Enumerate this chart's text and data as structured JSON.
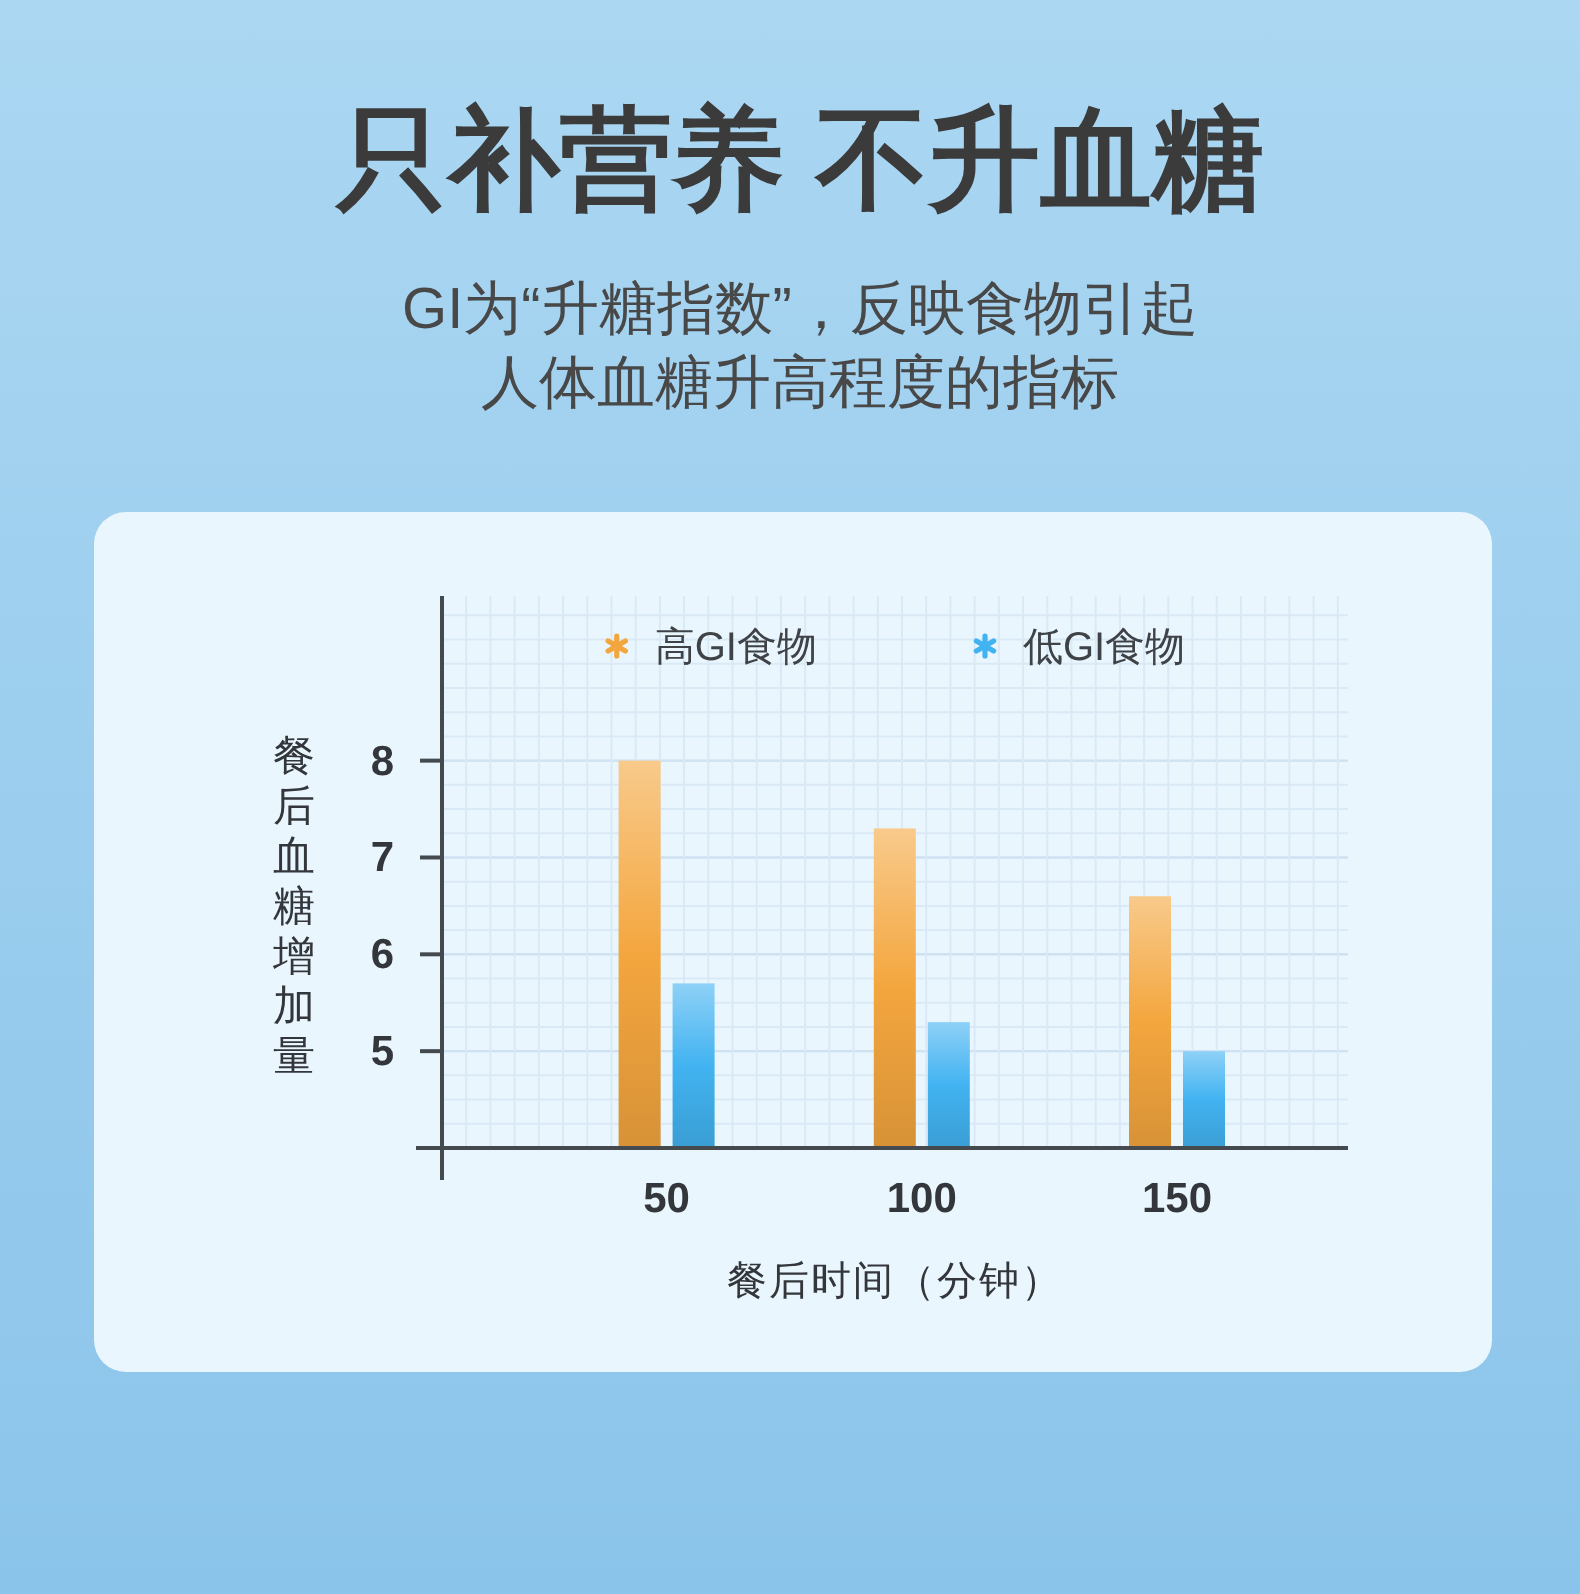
{
  "chart_data": {
    "type": "bar",
    "title": "只补营养 不升血糖",
    "subtitle": "GI为“升糖指数”，反映食物引起人体血糖升高程度的指标",
    "xlabel": "餐后时间（分钟）",
    "ylabel": "餐后血糖增加量",
    "categories": [
      "50",
      "100",
      "150"
    ],
    "series": [
      {
        "name": "高GI食物",
        "color": "#f4a63e",
        "values": [
          8.0,
          7.3,
          6.6
        ]
      },
      {
        "name": "低GI食物",
        "color": "#42b3f1",
        "values": [
          5.7,
          5.3,
          5.0
        ]
      }
    ],
    "ylim": [
      4,
      9.7
    ],
    "yticks": [
      5,
      6,
      7,
      8
    ],
    "grid": true,
    "legend": "top"
  }
}
